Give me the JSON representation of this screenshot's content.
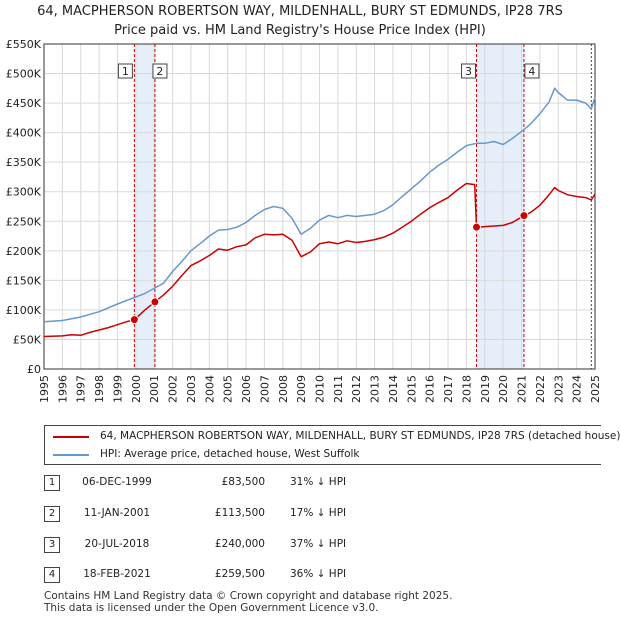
{
  "title_line1": "64, MACPHERSON ROBERTSON WAY, MILDENHALL, BURY ST EDMUNDS, IP28 7RS",
  "title_line2": "Price paid vs. HM Land Registry's House Price Index (HPI)",
  "chart_data": {
    "type": "line",
    "xlim": [
      1995,
      2025
    ],
    "ylim": [
      0,
      550000
    ],
    "y_ticks": [
      0,
      50000,
      100000,
      150000,
      200000,
      250000,
      300000,
      350000,
      400000,
      450000,
      500000,
      550000
    ],
    "y_tick_labels": [
      "£0",
      "£50K",
      "£100K",
      "£150K",
      "£200K",
      "£250K",
      "£300K",
      "£350K",
      "£400K",
      "£450K",
      "£500K",
      "£550K"
    ],
    "x_ticks": [
      1995,
      1996,
      1997,
      1998,
      1999,
      2000,
      2001,
      2002,
      2003,
      2004,
      2005,
      2006,
      2007,
      2008,
      2009,
      2010,
      2011,
      2012,
      2013,
      2014,
      2015,
      2016,
      2017,
      2018,
      2019,
      2020,
      2021,
      2022,
      2023,
      2024,
      2025
    ],
    "grid": true,
    "series": [
      {
        "name": "64, MACPHERSON ROBERTSON WAY, MILDENHALL, BURY ST EDMUNDS, IP28 7RS (detached house)",
        "color": "#cc0000",
        "points": [
          [
            1995.0,
            55000
          ],
          [
            1996.0,
            56000
          ],
          [
            1996.5,
            58000
          ],
          [
            1997.0,
            57000
          ],
          [
            1997.5,
            62000
          ],
          [
            1998.0,
            66000
          ],
          [
            1998.5,
            70000
          ],
          [
            1999.0,
            75000
          ],
          [
            1999.5,
            80000
          ],
          [
            1999.92,
            83500
          ],
          [
            2000.5,
            100000
          ],
          [
            2001.04,
            113500
          ],
          [
            2001.5,
            125000
          ],
          [
            2002.0,
            140000
          ],
          [
            2002.5,
            158000
          ],
          [
            2003.0,
            175000
          ],
          [
            2003.5,
            183000
          ],
          [
            2004.0,
            192000
          ],
          [
            2004.5,
            203000
          ],
          [
            2005.0,
            201000
          ],
          [
            2005.5,
            207000
          ],
          [
            2006.0,
            210000
          ],
          [
            2006.5,
            222000
          ],
          [
            2007.0,
            228000
          ],
          [
            2007.5,
            227000
          ],
          [
            2008.0,
            228000
          ],
          [
            2008.5,
            218000
          ],
          [
            2009.0,
            190000
          ],
          [
            2009.5,
            198000
          ],
          [
            2010.0,
            212000
          ],
          [
            2010.5,
            215000
          ],
          [
            2011.0,
            212000
          ],
          [
            2011.5,
            217000
          ],
          [
            2012.0,
            214000
          ],
          [
            2012.5,
            216000
          ],
          [
            2013.0,
            219000
          ],
          [
            2013.5,
            223000
          ],
          [
            2014.0,
            230000
          ],
          [
            2014.5,
            240000
          ],
          [
            2015.0,
            250000
          ],
          [
            2015.5,
            262000
          ],
          [
            2016.0,
            273000
          ],
          [
            2016.5,
            282000
          ],
          [
            2017.0,
            290000
          ],
          [
            2017.5,
            303000
          ],
          [
            2018.0,
            314000
          ],
          [
            2018.45,
            312000
          ],
          [
            2018.55,
            240000
          ],
          [
            2019.0,
            241000
          ],
          [
            2019.5,
            242000
          ],
          [
            2020.0,
            243000
          ],
          [
            2020.5,
            248000
          ],
          [
            2021.13,
            259500
          ],
          [
            2021.5,
            265000
          ],
          [
            2022.0,
            277000
          ],
          [
            2022.5,
            295000
          ],
          [
            2022.8,
            307000
          ],
          [
            2023.0,
            302000
          ],
          [
            2023.5,
            295000
          ],
          [
            2024.0,
            292000
          ],
          [
            2024.5,
            290000
          ],
          [
            2024.8,
            286000
          ],
          [
            2025.0,
            296000
          ]
        ]
      },
      {
        "name": "HPI: Average price, detached house, West Suffolk",
        "color": "#6699cc",
        "points": [
          [
            1995.0,
            80000
          ],
          [
            1996.0,
            82000
          ],
          [
            1997.0,
            88000
          ],
          [
            1998.0,
            97000
          ],
          [
            1999.0,
            110000
          ],
          [
            1999.92,
            121000
          ],
          [
            2000.5,
            128000
          ],
          [
            2001.04,
            137000
          ],
          [
            2001.5,
            145000
          ],
          [
            2002.0,
            165000
          ],
          [
            2002.5,
            182000
          ],
          [
            2003.0,
            200000
          ],
          [
            2003.5,
            212000
          ],
          [
            2004.0,
            225000
          ],
          [
            2004.5,
            235000
          ],
          [
            2005.0,
            236000
          ],
          [
            2005.5,
            240000
          ],
          [
            2006.0,
            248000
          ],
          [
            2006.5,
            260000
          ],
          [
            2007.0,
            270000
          ],
          [
            2007.5,
            275000
          ],
          [
            2008.0,
            272000
          ],
          [
            2008.5,
            255000
          ],
          [
            2009.0,
            228000
          ],
          [
            2009.5,
            238000
          ],
          [
            2010.0,
            252000
          ],
          [
            2010.5,
            260000
          ],
          [
            2011.0,
            256000
          ],
          [
            2011.5,
            260000
          ],
          [
            2012.0,
            258000
          ],
          [
            2012.5,
            260000
          ],
          [
            2013.0,
            262000
          ],
          [
            2013.5,
            268000
          ],
          [
            2014.0,
            278000
          ],
          [
            2014.5,
            292000
          ],
          [
            2015.0,
            305000
          ],
          [
            2015.5,
            318000
          ],
          [
            2016.0,
            333000
          ],
          [
            2016.5,
            345000
          ],
          [
            2017.0,
            355000
          ],
          [
            2017.5,
            367000
          ],
          [
            2018.0,
            378000
          ],
          [
            2018.55,
            382000
          ],
          [
            2019.0,
            382000
          ],
          [
            2019.5,
            385000
          ],
          [
            2020.0,
            380000
          ],
          [
            2020.5,
            390000
          ],
          [
            2021.13,
            405000
          ],
          [
            2021.5,
            415000
          ],
          [
            2022.0,
            432000
          ],
          [
            2022.5,
            452000
          ],
          [
            2022.8,
            475000
          ],
          [
            2023.0,
            468000
          ],
          [
            2023.5,
            455000
          ],
          [
            2024.0,
            455000
          ],
          [
            2024.5,
            450000
          ],
          [
            2024.8,
            440000
          ],
          [
            2025.0,
            460000
          ]
        ]
      }
    ],
    "shaded_periods": [
      [
        1999.92,
        2001.04
      ],
      [
        2018.55,
        2021.13
      ]
    ],
    "sales": [
      {
        "label": "1",
        "year": 1999.92,
        "price": 83500
      },
      {
        "label": "2",
        "year": 2001.04,
        "price": 113500
      },
      {
        "label": "3",
        "year": 2018.55,
        "price": 240000
      },
      {
        "label": "4",
        "year": 2021.13,
        "price": 259500
      }
    ]
  },
  "legend": {
    "property_label": "64, MACPHERSON ROBERTSON WAY, MILDENHALL, BURY ST EDMUNDS, IP28 7RS (detached house)",
    "hpi_label": "HPI: Average price, detached house, West Suffolk",
    "property_color": "#cc0000",
    "hpi_color": "#6699cc"
  },
  "transactions": [
    {
      "num": "1",
      "date": "06-DEC-1999",
      "price": "£83,500",
      "hpi": "31% ↓ HPI"
    },
    {
      "num": "2",
      "date": "11-JAN-2001",
      "price": "£113,500",
      "hpi": "17% ↓ HPI"
    },
    {
      "num": "3",
      "date": "20-JUL-2018",
      "price": "£240,000",
      "hpi": "37% ↓ HPI"
    },
    {
      "num": "4",
      "date": "18-FEB-2021",
      "price": "£259,500",
      "hpi": "36% ↓ HPI"
    }
  ],
  "footer_line1": "Contains HM Land Registry data © Crown copyright and database right 2025.",
  "footer_line2": "This data is licensed under the Open Government Licence v3.0."
}
